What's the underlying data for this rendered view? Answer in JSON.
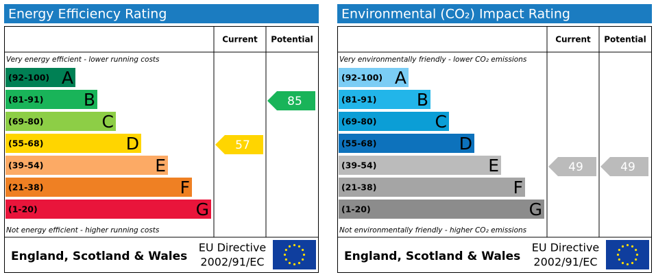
{
  "panels": [
    {
      "title": "Energy Efficiency Rating",
      "columns": [
        "Current",
        "Potential"
      ],
      "top_note": "Very energy efficient - lower running costs",
      "bottom_note": "Not energy efficient - higher running costs",
      "bands": [
        {
          "range": "(92-100)",
          "letter": "A",
          "color": "#008054"
        },
        {
          "range": "(81-91)",
          "letter": "B",
          "color": "#19b459"
        },
        {
          "range": "(69-80)",
          "letter": "C",
          "color": "#8dce46"
        },
        {
          "range": "(55-68)",
          "letter": "D",
          "color": "#ffd500"
        },
        {
          "range": "(39-54)",
          "letter": "E",
          "color": "#fcaa65"
        },
        {
          "range": "(21-38)",
          "letter": "F",
          "color": "#ef8023"
        },
        {
          "range": "(1-20)",
          "letter": "G",
          "color": "#e9153b"
        }
      ],
      "current": 57,
      "potential": 85,
      "footer": "England, Scotland & Wales",
      "directive": [
        "EU Directive",
        "2002/91/EC"
      ]
    },
    {
      "title": "Environmental (CO₂) Impact Rating",
      "columns": [
        "Current",
        "Potential"
      ],
      "top_note": "Very environmentally friendly - lower CO₂ emissions",
      "bottom_note": "Not environmentally friendly - higher CO₂ emissions",
      "bands": [
        {
          "range": "(92-100)",
          "letter": "A",
          "color": "#7bcdf5"
        },
        {
          "range": "(81-91)",
          "letter": "B",
          "color": "#22b5e9"
        },
        {
          "range": "(69-80)",
          "letter": "C",
          "color": "#0b9ed6"
        },
        {
          "range": "(55-68)",
          "letter": "D",
          "color": "#0d72bc"
        },
        {
          "range": "(39-54)",
          "letter": "E",
          "color": "#bbbbbb"
        },
        {
          "range": "(21-38)",
          "letter": "F",
          "color": "#a5a5a5"
        },
        {
          "range": "(1-20)",
          "letter": "G",
          "color": "#8c8c8c"
        }
      ],
      "current": 49,
      "potential": 49,
      "footer": "England, Scotland & Wales",
      "directive": [
        "EU Directive",
        "2002/91/EC"
      ]
    }
  ]
}
